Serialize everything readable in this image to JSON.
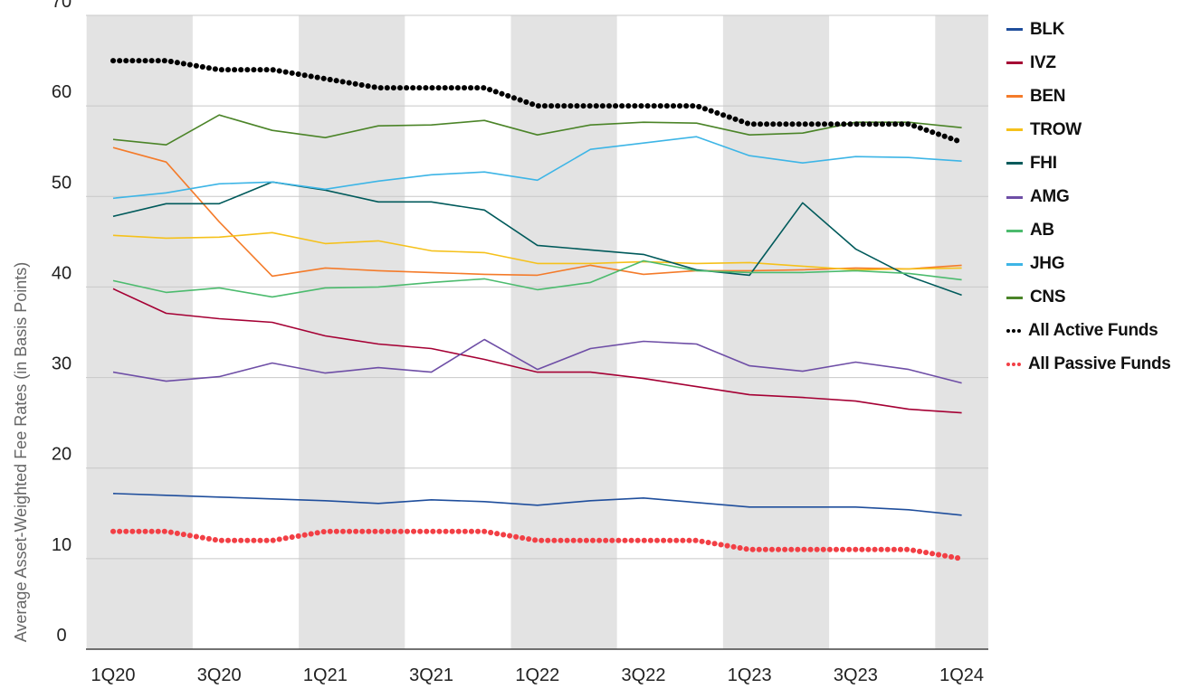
{
  "chart_data": {
    "type": "line",
    "title": "",
    "xlabel": "",
    "ylabel": "Average Asset-Weighted Fee Rates (in Basis Points)",
    "x": [
      "1Q20",
      "2Q20",
      "3Q20",
      "4Q20",
      "1Q21",
      "2Q21",
      "3Q21",
      "4Q21",
      "1Q22",
      "2Q22",
      "3Q22",
      "4Q22",
      "1Q23",
      "2Q23",
      "3Q23",
      "4Q23",
      "1Q24"
    ],
    "x_tick_labels": [
      "1Q20",
      "3Q20",
      "1Q21",
      "3Q21",
      "1Q22",
      "3Q22",
      "1Q23",
      "3Q23",
      "1Q24"
    ],
    "y_ticks": [
      0,
      10,
      20,
      30,
      40,
      50,
      60,
      70
    ],
    "ylim": [
      0,
      70
    ],
    "grid": "horizontal",
    "shaded_bands": [
      [
        "1Q20",
        "2Q20"
      ],
      [
        "1Q21",
        "2Q21"
      ],
      [
        "1Q22",
        "2Q22"
      ],
      [
        "1Q23",
        "2Q23"
      ],
      [
        "1Q24",
        "1Q24"
      ]
    ],
    "legend_position": "right",
    "series": [
      {
        "name": "BLK",
        "color": "#1f4e9c",
        "style": "solid",
        "values": [
          17.2,
          17.0,
          16.8,
          16.6,
          16.4,
          16.1,
          16.5,
          16.3,
          15.9,
          16.4,
          16.7,
          16.2,
          15.7,
          15.7,
          15.7,
          15.4,
          14.8
        ]
      },
      {
        "name": "IVZ",
        "color": "#a50034",
        "style": "solid",
        "values": [
          39.8,
          37.1,
          36.5,
          36.1,
          34.6,
          33.7,
          33.2,
          32.0,
          30.6,
          30.6,
          29.9,
          29.0,
          28.1,
          27.8,
          27.4,
          26.5,
          26.1
        ]
      },
      {
        "name": "BEN",
        "color": "#f47b2a",
        "style": "solid",
        "values": [
          55.4,
          53.8,
          47.2,
          41.2,
          42.1,
          41.8,
          41.6,
          41.4,
          41.3,
          42.4,
          41.4,
          41.8,
          41.8,
          41.9,
          42.1,
          42.0,
          42.4
        ]
      },
      {
        "name": "TROW",
        "color": "#f5c11b",
        "style": "solid",
        "values": [
          45.7,
          45.4,
          45.5,
          46.0,
          44.8,
          45.1,
          44.0,
          43.8,
          42.6,
          42.6,
          42.8,
          42.6,
          42.7,
          42.3,
          41.9,
          42.0,
          42.1
        ]
      },
      {
        "name": "FHI",
        "color": "#005a5b",
        "style": "solid",
        "values": [
          47.8,
          49.2,
          49.2,
          51.6,
          50.7,
          49.4,
          49.4,
          48.5,
          44.6,
          44.1,
          43.6,
          41.9,
          41.3,
          49.3,
          44.2,
          41.2,
          39.1
        ]
      },
      {
        "name": "AMG",
        "color": "#6e4ea6",
        "style": "solid",
        "values": [
          30.6,
          29.6,
          30.1,
          31.6,
          30.5,
          31.1,
          30.6,
          34.2,
          30.9,
          33.2,
          34.0,
          33.7,
          31.3,
          30.7,
          31.7,
          30.9,
          29.4
        ]
      },
      {
        "name": "AB",
        "color": "#4cbb6e",
        "style": "solid",
        "values": [
          40.7,
          39.4,
          39.9,
          38.9,
          39.9,
          40.0,
          40.5,
          40.9,
          39.7,
          40.5,
          42.9,
          41.8,
          41.6,
          41.6,
          41.8,
          41.5,
          40.8
        ]
      },
      {
        "name": "JHG",
        "color": "#3db5e6",
        "style": "solid",
        "values": [
          49.8,
          50.4,
          51.4,
          51.6,
          50.8,
          51.7,
          52.4,
          52.7,
          51.8,
          55.2,
          55.9,
          56.6,
          54.5,
          53.7,
          54.4,
          54.3,
          53.9
        ]
      },
      {
        "name": "CNS",
        "color": "#4b8428",
        "style": "solid",
        "values": [
          56.3,
          55.7,
          59.0,
          57.3,
          56.5,
          57.8,
          57.9,
          58.4,
          56.8,
          57.9,
          58.2,
          58.1,
          56.8,
          57.0,
          58.2,
          58.2,
          57.6
        ]
      },
      {
        "name": "All Active Funds",
        "color": "#000000",
        "style": "dotted",
        "values": [
          65.0,
          65.0,
          64.0,
          64.0,
          63.0,
          62.0,
          62.0,
          62.0,
          60.0,
          60.0,
          60.0,
          60.0,
          58.0,
          58.0,
          58.0,
          58.0,
          56.0
        ]
      },
      {
        "name": "All Passive Funds",
        "color": "#f23f45",
        "style": "dotted",
        "values": [
          13.0,
          13.0,
          12.0,
          12.0,
          13.0,
          13.0,
          13.0,
          13.0,
          12.0,
          12.0,
          12.0,
          12.0,
          11.0,
          11.0,
          11.0,
          11.0,
          10.0
        ]
      }
    ]
  }
}
